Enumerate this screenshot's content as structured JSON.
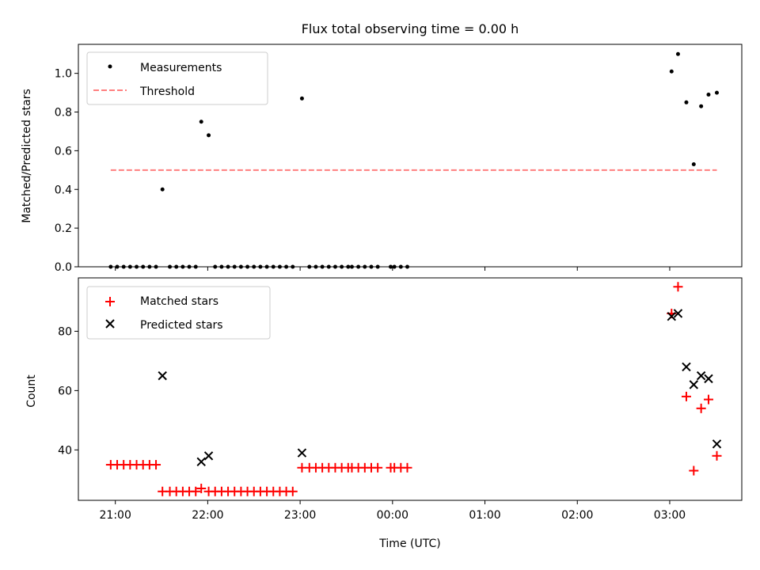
{
  "chart_data": [
    {
      "type": "scatter",
      "title": "Flux total observing time = 0.00 h",
      "xlabel": "",
      "ylabel": "Matched/Predicted stars",
      "xlim": [
        -0.4,
        6.78
      ],
      "ylim": [
        0.0,
        1.15
      ],
      "yticks": [
        0.0,
        0.2,
        0.4,
        0.6,
        0.8,
        1.0
      ],
      "ytick_labels": [
        "0.0",
        "0.2",
        "0.4",
        "0.6",
        "0.8",
        "1.0"
      ],
      "grid": false,
      "legend_placement": "upper-left",
      "series": [
        {
          "name": "Measurements",
          "marker": "dot",
          "color": "#000000",
          "points": [
            [
              -0.05,
              0.0
            ],
            [
              0.02,
              0.0
            ],
            [
              0.09,
              0.0
            ],
            [
              0.16,
              0.0
            ],
            [
              0.23,
              0.0
            ],
            [
              0.3,
              0.0
            ],
            [
              0.37,
              0.0
            ],
            [
              0.44,
              0.0
            ],
            [
              0.51,
              0.4
            ],
            [
              0.59,
              0.0
            ],
            [
              0.66,
              0.0
            ],
            [
              0.73,
              0.0
            ],
            [
              0.8,
              0.0
            ],
            [
              0.87,
              0.0
            ],
            [
              0.93,
              0.75
            ],
            [
              1.01,
              0.68
            ],
            [
              1.08,
              0.0
            ],
            [
              1.15,
              0.0
            ],
            [
              1.22,
              0.0
            ],
            [
              1.29,
              0.0
            ],
            [
              1.36,
              0.0
            ],
            [
              1.43,
              0.0
            ],
            [
              1.5,
              0.0
            ],
            [
              1.57,
              0.0
            ],
            [
              1.64,
              0.0
            ],
            [
              1.71,
              0.0
            ],
            [
              1.78,
              0.0
            ],
            [
              1.85,
              0.0
            ],
            [
              1.92,
              0.0
            ],
            [
              2.02,
              0.87
            ],
            [
              2.1,
              0.0
            ],
            [
              2.17,
              0.0
            ],
            [
              2.24,
              0.0
            ],
            [
              2.31,
              0.0
            ],
            [
              2.38,
              0.0
            ],
            [
              2.45,
              0.0
            ],
            [
              2.52,
              0.0
            ],
            [
              2.56,
              0.0
            ],
            [
              2.63,
              0.0
            ],
            [
              2.7,
              0.0
            ],
            [
              2.77,
              0.0
            ],
            [
              2.84,
              0.0
            ],
            [
              2.98,
              0.0
            ],
            [
              3.02,
              0.0
            ],
            [
              3.09,
              0.0
            ],
            [
              3.16,
              0.0
            ],
            [
              6.02,
              1.01
            ],
            [
              6.09,
              1.1
            ],
            [
              6.18,
              0.85
            ],
            [
              6.26,
              0.53
            ],
            [
              6.34,
              0.83
            ],
            [
              6.42,
              0.89
            ],
            [
              6.51,
              0.9
            ]
          ]
        },
        {
          "name": "Threshold",
          "marker": "dashed-line",
          "color": "#ff7f7f",
          "points": [
            [
              -0.05,
              0.5
            ],
            [
              6.51,
              0.5
            ]
          ]
        }
      ]
    },
    {
      "type": "scatter",
      "title": "",
      "xlabel": "Time (UTC)",
      "ylabel": "Count",
      "xlim": [
        -0.4,
        6.78
      ],
      "ylim": [
        23,
        98
      ],
      "yticks": [
        40,
        60,
        80
      ],
      "ytick_labels": [
        "40",
        "60",
        "80"
      ],
      "xticks": [
        0,
        1,
        2,
        3,
        4,
        5,
        6
      ],
      "xtick_labels": [
        "21:00",
        "22:00",
        "23:00",
        "00:00",
        "01:00",
        "02:00",
        "03:00"
      ],
      "grid": false,
      "legend_placement": "upper-left",
      "series": [
        {
          "name": "Matched stars",
          "marker": "plus",
          "color": "#ff0000",
          "points": [
            [
              -0.05,
              35
            ],
            [
              0.02,
              35
            ],
            [
              0.09,
              35
            ],
            [
              0.16,
              35
            ],
            [
              0.23,
              35
            ],
            [
              0.3,
              35
            ],
            [
              0.37,
              35
            ],
            [
              0.44,
              35
            ],
            [
              0.51,
              26
            ],
            [
              0.59,
              26
            ],
            [
              0.66,
              26
            ],
            [
              0.73,
              26
            ],
            [
              0.8,
              26
            ],
            [
              0.87,
              26
            ],
            [
              0.93,
              27
            ],
            [
              1.01,
              26
            ],
            [
              1.08,
              26
            ],
            [
              1.15,
              26
            ],
            [
              1.22,
              26
            ],
            [
              1.29,
              26
            ],
            [
              1.36,
              26
            ],
            [
              1.43,
              26
            ],
            [
              1.5,
              26
            ],
            [
              1.57,
              26
            ],
            [
              1.64,
              26
            ],
            [
              1.71,
              26
            ],
            [
              1.78,
              26
            ],
            [
              1.85,
              26
            ],
            [
              1.92,
              26
            ],
            [
              2.02,
              34
            ],
            [
              2.1,
              34
            ],
            [
              2.17,
              34
            ],
            [
              2.24,
              34
            ],
            [
              2.31,
              34
            ],
            [
              2.38,
              34
            ],
            [
              2.45,
              34
            ],
            [
              2.52,
              34
            ],
            [
              2.56,
              34
            ],
            [
              2.63,
              34
            ],
            [
              2.7,
              34
            ],
            [
              2.77,
              34
            ],
            [
              2.84,
              34
            ],
            [
              2.98,
              34
            ],
            [
              3.02,
              34
            ],
            [
              3.09,
              34
            ],
            [
              3.16,
              34
            ],
            [
              6.02,
              86
            ],
            [
              6.09,
              95
            ],
            [
              6.18,
              58
            ],
            [
              6.26,
              33
            ],
            [
              6.34,
              54
            ],
            [
              6.42,
              57
            ],
            [
              6.51,
              38
            ]
          ]
        },
        {
          "name": "Predicted stars",
          "marker": "x",
          "color": "#000000",
          "points": [
            [
              0.51,
              65
            ],
            [
              0.93,
              36
            ],
            [
              1.01,
              38
            ],
            [
              2.02,
              39
            ],
            [
              6.02,
              85
            ],
            [
              6.09,
              86
            ],
            [
              6.18,
              68
            ],
            [
              6.26,
              62
            ],
            [
              6.34,
              65
            ],
            [
              6.42,
              64
            ],
            [
              6.51,
              42
            ]
          ]
        }
      ]
    }
  ]
}
